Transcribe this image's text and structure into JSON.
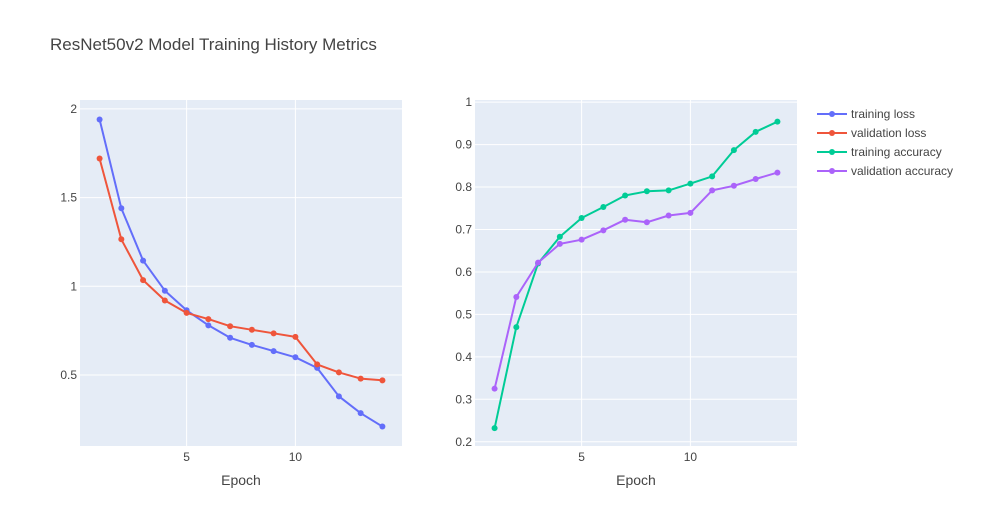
{
  "title": "ResNet50v2 Model Training History Metrics",
  "colors": {
    "plot_bg": "#e5ecf6",
    "grid": "#ffffff",
    "text": "#444444",
    "training_loss": "#636efa",
    "validation_loss": "#ef553b",
    "training_accuracy": "#00cc96",
    "validation_accuracy": "#ab63fa"
  },
  "legend": {
    "placement": "top-right",
    "items": [
      {
        "name": "training loss",
        "color": "#636efa"
      },
      {
        "name": "validation loss",
        "color": "#ef553b"
      },
      {
        "name": "training accuracy",
        "color": "#00cc96"
      },
      {
        "name": "validation accuracy",
        "color": "#ab63fa"
      }
    ]
  },
  "chart_data": [
    {
      "type": "line",
      "xlabel": "Epoch",
      "ylabel": "",
      "xlim": [
        0.1,
        14.9
      ],
      "ylim": [
        0.1,
        2.05
      ],
      "xticks": [
        5,
        10
      ],
      "xtick_labels": [
        "5",
        "10"
      ],
      "yticks": [
        0.5,
        1,
        1.5,
        2
      ],
      "ytick_labels": [
        "0.5",
        "1",
        "1.5",
        "2"
      ],
      "grid": true,
      "x": [
        1,
        2,
        3,
        4,
        5,
        6,
        7,
        8,
        9,
        10,
        11,
        12,
        13,
        14
      ],
      "series": [
        {
          "name": "training loss",
          "color": "#636efa",
          "values": [
            1.94,
            1.44,
            1.145,
            0.975,
            0.865,
            0.78,
            0.71,
            0.67,
            0.635,
            0.6,
            0.54,
            0.38,
            0.285,
            0.21
          ]
        },
        {
          "name": "validation loss",
          "color": "#ef553b",
          "values": [
            1.72,
            1.265,
            1.035,
            0.92,
            0.85,
            0.815,
            0.775,
            0.755,
            0.735,
            0.715,
            0.56,
            0.515,
            0.48,
            0.47
          ]
        }
      ]
    },
    {
      "type": "line",
      "xlabel": "Epoch",
      "ylabel": "",
      "xlim": [
        0.1,
        14.9
      ],
      "ylim": [
        0.19,
        1.005
      ],
      "xticks": [
        5,
        10
      ],
      "xtick_labels": [
        "5",
        "10"
      ],
      "yticks": [
        0.2,
        0.3,
        0.4,
        0.5,
        0.6,
        0.7,
        0.8,
        0.9,
        1
      ],
      "ytick_labels": [
        "0.2",
        "0.3",
        "0.4",
        "0.5",
        "0.6",
        "0.7",
        "0.8",
        "0.9",
        "1"
      ],
      "grid": true,
      "x": [
        1,
        2,
        3,
        4,
        5,
        6,
        7,
        8,
        9,
        10,
        11,
        12,
        13,
        14
      ],
      "series": [
        {
          "name": "training accuracy",
          "color": "#00cc96",
          "values": [
            0.232,
            0.47,
            0.62,
            0.683,
            0.727,
            0.753,
            0.78,
            0.79,
            0.792,
            0.808,
            0.825,
            0.887,
            0.93,
            0.954
          ]
        },
        {
          "name": "validation accuracy",
          "color": "#ab63fa",
          "values": [
            0.325,
            0.541,
            0.622,
            0.666,
            0.676,
            0.698,
            0.723,
            0.717,
            0.733,
            0.739,
            0.792,
            0.803,
            0.819,
            0.834
          ]
        }
      ]
    }
  ]
}
